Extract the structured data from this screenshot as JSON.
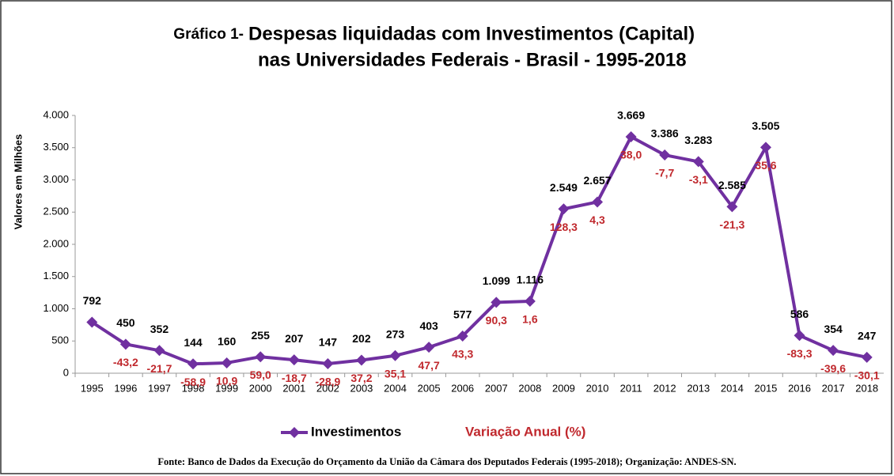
{
  "chart_data": {
    "type": "line",
    "title_prefix": "Gráfico 1-",
    "title": "Despesas liquidadas com Investimentos (Capital)",
    "subtitle": "nas Universidades Federais - Brasil - 1995-2018",
    "y_label": "Valores em Milhões",
    "categories": [
      "1995",
      "1996",
      "1997",
      "1998",
      "1999",
      "2000",
      "2001",
      "2002",
      "2003",
      "2004",
      "2005",
      "2006",
      "2007",
      "2008",
      "2009",
      "2010",
      "2011",
      "2012",
      "2013",
      "2014",
      "2015",
      "2016",
      "2017",
      "2018"
    ],
    "series": [
      {
        "name": "Investimentos",
        "color": "#7030a0",
        "values": [
          792,
          450,
          352,
          144,
          160,
          255,
          207,
          147,
          202,
          273,
          403,
          577,
          1099,
          1116,
          2549,
          2657,
          3669,
          3386,
          3283,
          2585,
          3505,
          586,
          354,
          247
        ],
        "value_labels": [
          "792",
          "450",
          "352",
          "144",
          "160",
          "255",
          "207",
          "147",
          "202",
          "273",
          "403",
          "577",
          "1.099",
          "1.116",
          "2.549",
          "2.657",
          "3.669",
          "3.386",
          "3.283",
          "2.585",
          "3.505",
          "586",
          "354",
          "247"
        ]
      },
      {
        "name": "Variação Anual (%)",
        "color": "#c0282d",
        "values": [
          null,
          -43.2,
          -21.7,
          -58.9,
          10.9,
          59.0,
          -18.7,
          -28.9,
          37.2,
          35.1,
          47.7,
          43.3,
          90.3,
          1.6,
          128.3,
          4.3,
          38.0,
          -7.7,
          -3.1,
          -21.3,
          35.6,
          -83.3,
          -39.6,
          -30.1
        ],
        "value_labels": [
          null,
          "-43,2",
          "-21,7",
          "-58,9",
          "10,9",
          "59,0",
          "-18,7",
          "-28,9",
          "37,2",
          "35,1",
          "47,7",
          "43,3",
          "90,3",
          "1,6",
          "128,3",
          "4,3",
          "38,0",
          "-7,7",
          "-3,1",
          "-21,3",
          "35,6",
          "-83,3",
          "-39,6",
          "-30,1"
        ]
      }
    ],
    "ylim": [
      0,
      4000
    ],
    "yticks": [
      0,
      500,
      {
        "value": 1000,
        "label": "1.000"
      },
      {
        "value": 1500,
        "label": "1.500"
      },
      {
        "value": 2000,
        "label": "2.000"
      },
      {
        "value": 2500,
        "label": "2.500"
      },
      {
        "value": 3000,
        "label": "3.000"
      },
      {
        "value": 3500,
        "label": "3.500"
      },
      {
        "value": 4000,
        "label": "4.000"
      }
    ],
    "source": "Fonte: Banco de Dados da Execução do Orçamento da União da Câmara dos Deputados Federais (1995-2018); Organização: ANDES-SN."
  }
}
